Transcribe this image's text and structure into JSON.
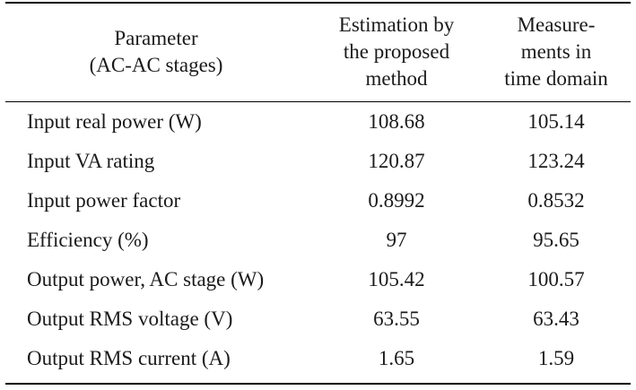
{
  "table": {
    "headers": {
      "parameter": "Parameter\n(AC-AC stages)",
      "estimation": "Estimation by\nthe proposed\nmethod",
      "measurements": "Measure-\nments in\ntime domain"
    },
    "rows": [
      {
        "parameter": "Input real power (W)",
        "estimation": "108.68",
        "measurement": "105.14"
      },
      {
        "parameter": "Input VA rating",
        "estimation": "120.87",
        "measurement": "123.24"
      },
      {
        "parameter": "Input power factor",
        "estimation": "0.8992",
        "measurement": "0.8532"
      },
      {
        "parameter": "Efficiency (%)",
        "estimation": "97",
        "measurement": "95.65"
      },
      {
        "parameter": "Output power, AC stage (W)",
        "estimation": "105.42",
        "measurement": "100.57"
      },
      {
        "parameter": "Output RMS voltage (V)",
        "estimation": "63.55",
        "measurement": "63.43"
      },
      {
        "parameter": "Output RMS current (A)",
        "estimation": "1.65",
        "measurement": "1.59"
      }
    ]
  }
}
